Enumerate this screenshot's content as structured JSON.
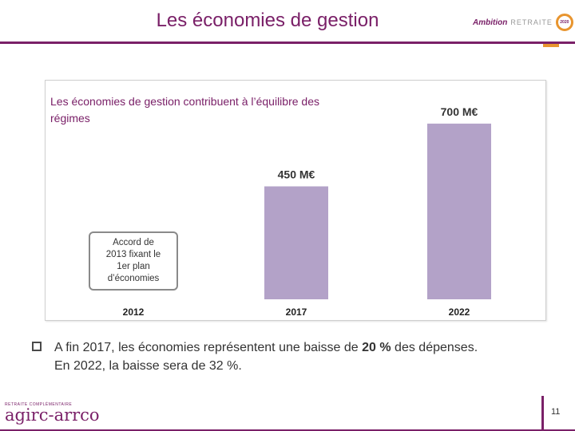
{
  "header": {
    "title": "Les économies de gestion",
    "brand_ambition": "Ambition",
    "brand_retraite": "RETRAITE",
    "brand_badge": "2020"
  },
  "chart_data": {
    "type": "bar",
    "title": "Les économies de gestion contribuent à l’équilibre des régimes",
    "title_lines": [
      "Les économies de gestion contribuent à l’équilibre des",
      "régimes"
    ],
    "categories": [
      "2012",
      "2017",
      "2022"
    ],
    "values": [
      0,
      450,
      700
    ],
    "data_labels": [
      "",
      "450 M€",
      "700 M€"
    ],
    "unit": "M€",
    "ylim": [
      0,
      760
    ],
    "bar_color": "#b3a2c8",
    "annotation": {
      "category": "2012",
      "lines": [
        "Accord de",
        "2013 fixant le",
        "1er plan",
        "d’économies"
      ]
    }
  },
  "bullet": {
    "prefix": "A fin 2017, les économies représentent une baisse de ",
    "highlight": "20 %",
    "suffix": " des dépenses.",
    "line2": "En 2022, la baisse sera de 32 %."
  },
  "footer": {
    "logo_small": "RETRAITE COMPLÉMENTAIRE",
    "logo_main": "agirc-arrco",
    "page_number": "11"
  },
  "colors": {
    "brand": "#7a2068",
    "accent": "#e8952f"
  }
}
